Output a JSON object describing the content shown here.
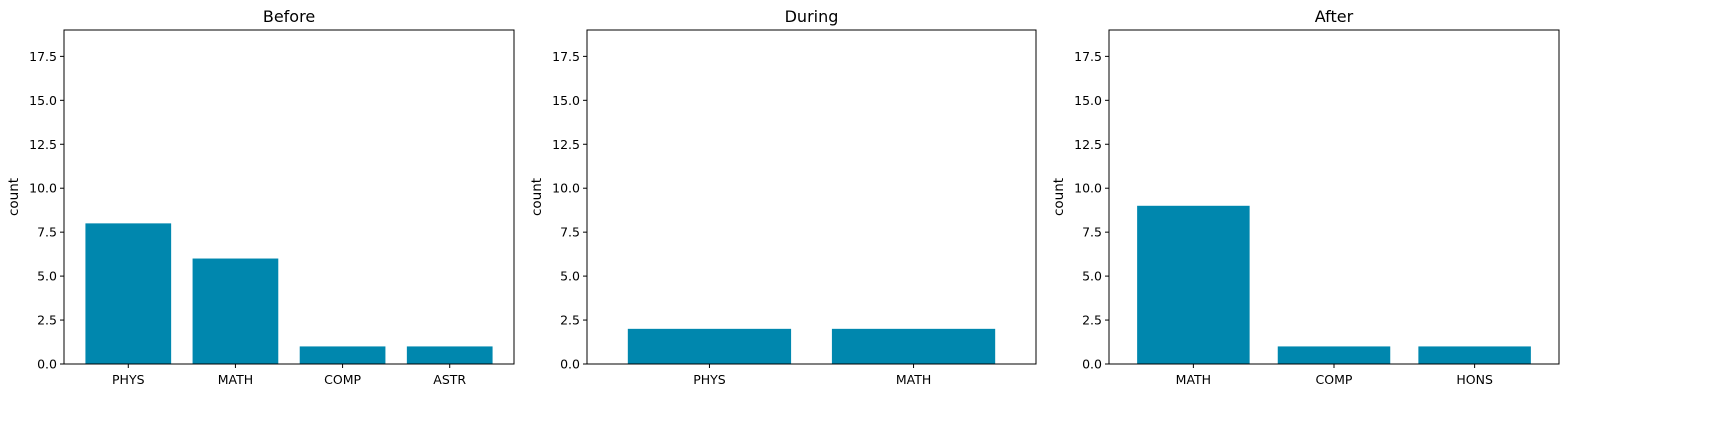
{
  "chart_data": [
    {
      "type": "bar",
      "title": "Before",
      "ylabel": "count",
      "xlabel": "",
      "ylim": [
        0,
        19
      ],
      "yticks": [
        0.0,
        2.5,
        5.0,
        7.5,
        10.0,
        12.5,
        15.0,
        17.5
      ],
      "ytick_labels": [
        "0.0",
        "2.5",
        "5.0",
        "7.5",
        "10.0",
        "12.5",
        "15.0",
        "17.5"
      ],
      "categories": [
        "PHYS",
        "MATH",
        "COMP",
        "ASTR"
      ],
      "values": [
        8,
        6,
        1,
        1
      ],
      "color": "#0087ae",
      "grid": false
    },
    {
      "type": "bar",
      "title": "During",
      "ylabel": "count",
      "xlabel": "",
      "ylim": [
        0,
        19
      ],
      "yticks": [
        0.0,
        2.5,
        5.0,
        7.5,
        10.0,
        12.5,
        15.0,
        17.5
      ],
      "ytick_labels": [
        "0.0",
        "2.5",
        "5.0",
        "7.5",
        "10.0",
        "12.5",
        "15.0",
        "17.5"
      ],
      "categories": [
        "PHYS",
        "MATH"
      ],
      "values": [
        2,
        2
      ],
      "color": "#0087ae",
      "grid": false
    },
    {
      "type": "bar",
      "title": "After",
      "ylabel": "count",
      "xlabel": "",
      "ylim": [
        0,
        19
      ],
      "yticks": [
        0.0,
        2.5,
        5.0,
        7.5,
        10.0,
        12.5,
        15.0,
        17.5
      ],
      "ytick_labels": [
        "0.0",
        "2.5",
        "5.0",
        "7.5",
        "10.0",
        "12.5",
        "15.0",
        "17.5"
      ],
      "categories": [
        "MATH",
        "COMP",
        "HONS"
      ],
      "values": [
        9,
        1,
        1
      ],
      "color": "#0087ae",
      "grid": false
    }
  ]
}
